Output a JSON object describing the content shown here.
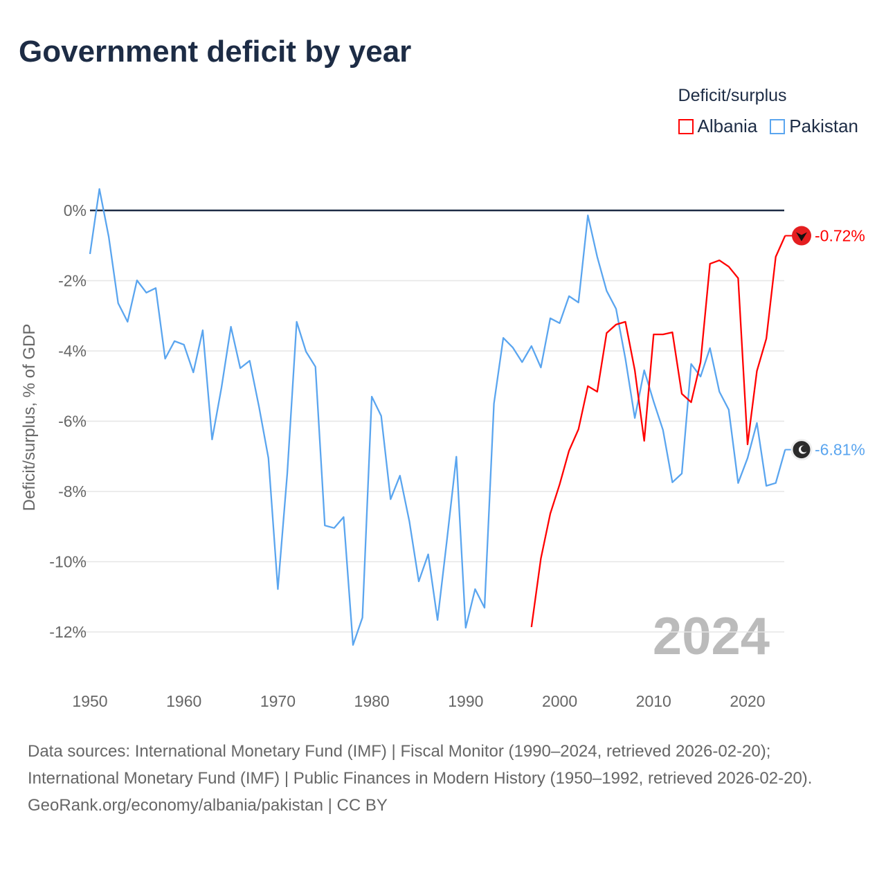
{
  "title": "Government deficit by year",
  "legend": {
    "title": "Deficit/surplus",
    "items": [
      {
        "label": "Albania",
        "color": "#ff0000"
      },
      {
        "label": "Pakistan",
        "color": "#5aa5ef"
      }
    ]
  },
  "footer": {
    "sources": "Data sources: International Monetary Fund (IMF) | Fiscal Monitor (1990–2024, retrieved 2026-02-20); International Monetary Fund (IMF) | Public Finances in Modern History (1950–1992, retrieved 2026-02-20).",
    "credit": "GeoRank.org/economy/albania/pakistan | CC BY"
  },
  "chart_data": {
    "type": "line",
    "title": "Government deficit by year",
    "xlabel": "",
    "ylabel": "Deficit/surplus, % of GDP",
    "xlim": [
      1950,
      2024
    ],
    "ylim": [
      -12.5,
      0.5
    ],
    "x_ticks": [
      1950,
      1960,
      1970,
      1980,
      1990,
      2000,
      2010,
      2020
    ],
    "y_ticks": [
      0,
      -2,
      -4,
      -6,
      -8,
      -10,
      -12
    ],
    "y_tick_labels": [
      "0%",
      "-2%",
      "-4%",
      "-6%",
      "-8%",
      "-10%",
      "-12%"
    ],
    "grid": true,
    "legend_position": "top-right",
    "year_watermark": "2024",
    "series": [
      {
        "name": "Albania",
        "color": "#ff0000",
        "start_year": 1997,
        "end_label": "-0.72%",
        "values": [
          -11.86,
          -9.91,
          -8.63,
          -7.8,
          -6.84,
          -6.23,
          -5.0,
          -5.16,
          -3.49,
          -3.25,
          -3.17,
          -4.55,
          -6.56,
          -3.53,
          -3.53,
          -3.47,
          -5.22,
          -5.46,
          -4.32,
          -1.52,
          -1.42,
          -1.6,
          -1.93,
          -6.66,
          -4.57,
          -3.65,
          -1.32,
          -0.72
        ]
      },
      {
        "name": "Pakistan",
        "color": "#5aa5ef",
        "start_year": 1950,
        "end_label": "-6.81%",
        "values": [
          -1.24,
          0.61,
          -0.75,
          -2.64,
          -3.17,
          -1.99,
          -2.34,
          -2.21,
          -4.22,
          -3.72,
          -3.82,
          -4.61,
          -3.41,
          -6.52,
          -5.04,
          -3.31,
          -4.49,
          -4.28,
          -5.6,
          -7.05,
          -10.78,
          -7.49,
          -3.17,
          -4.02,
          -4.45,
          -8.97,
          -9.04,
          -8.73,
          -12.37,
          -11.59,
          -5.3,
          -5.85,
          -8.22,
          -7.55,
          -8.85,
          -10.56,
          -9.79,
          -11.66,
          -9.38,
          -7.01,
          -11.88,
          -10.78,
          -11.31,
          -5.5,
          -3.63,
          -3.9,
          -4.32,
          -3.86,
          -4.47,
          -3.07,
          -3.21,
          -2.44,
          -2.62,
          -0.14,
          -1.32,
          -2.29,
          -2.8,
          -4.22,
          -5.91,
          -4.55,
          -5.44,
          -6.25,
          -7.74,
          -7.49,
          -4.37,
          -4.73,
          -3.92,
          -5.16,
          -5.67,
          -7.76,
          -7.05,
          -6.05,
          -7.84,
          -7.76,
          -6.81
        ]
      }
    ]
  }
}
